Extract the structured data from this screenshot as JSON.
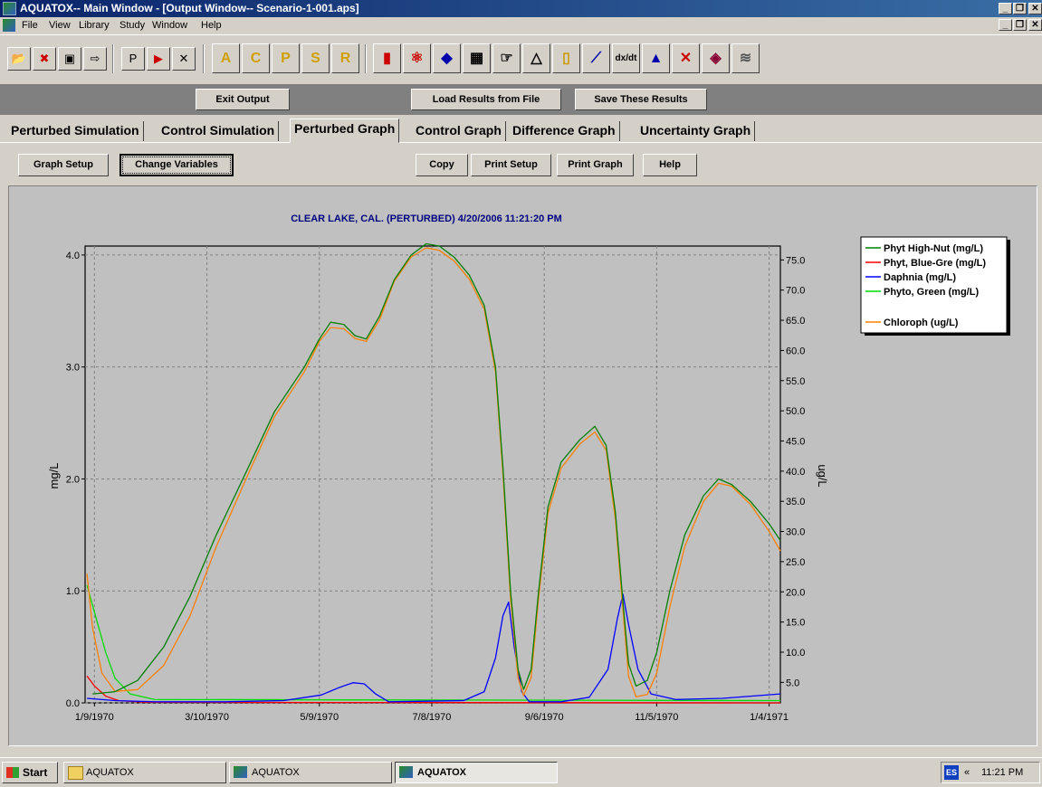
{
  "window": {
    "title": "AQUATOX-- Main Window - [Output Window-- Scenario-1-001.aps]"
  },
  "menu": [
    "File",
    "View",
    "Library",
    "Study",
    "Window",
    "Help"
  ],
  "toolbar": {
    "icons": [
      "open-folder-icon",
      "delete-icon",
      "save-icon",
      "save-as-icon",
      "print-setup-icon",
      "print-icon",
      "close-icon",
      "animal-library-icon",
      "chemical-library-icon",
      "plant-library-icon",
      "site-library-icon",
      "remineralization-library-icon",
      "bar-chart-icon",
      "atom-icon",
      "map-icon",
      "linked-segments-icon",
      "pointer-hand-icon",
      "triangle-icon",
      "ruler-icon",
      "graph-icon",
      "derivative-icon",
      "distribution-icon",
      "graph-x-icon",
      "book-icon",
      "signal-icon"
    ],
    "letters": [
      "A",
      "C",
      "P",
      "S",
      "R"
    ],
    "derivative_label": "dx/dt"
  },
  "output_buttons": {
    "exit": "Exit Output",
    "load": "Load Results from File",
    "save": "Save These Results"
  },
  "tabs": [
    {
      "label": "Perturbed Simulation",
      "active": false
    },
    {
      "label": "Control Simulation",
      "active": false
    },
    {
      "label": "Perturbed Graph",
      "active": true
    },
    {
      "label": "Control Graph",
      "active": false
    },
    {
      "label": "Difference Graph",
      "active": false
    },
    {
      "label": "Uncertainty Graph",
      "active": false
    }
  ],
  "graph_buttons": {
    "setup": "Graph Setup",
    "change": "Change Variables",
    "copy": "Copy",
    "print_setup": "Print Setup",
    "print_graph": "Print Graph",
    "help": "Help"
  },
  "chart_data": {
    "type": "line",
    "title": "CLEAR LAKE, CAL. (PERTURBED)  4/20/2006 11:21:20 PM",
    "ylabel": "mg/L",
    "y2label": "ug/L",
    "ylim": [
      0,
      4.08
    ],
    "y2lim": [
      1.6,
      77.3
    ],
    "xlim": [
      "1/4/1970",
      "1/10/1971"
    ],
    "x_ticks": [
      "1/9/1970",
      "3/10/1970",
      "5/9/1970",
      "7/8/1970",
      "9/6/1970",
      "11/5/1970",
      "1/4/1971"
    ],
    "y_ticks": [
      "0.0",
      "1.0",
      "2.0",
      "3.0",
      "4.0"
    ],
    "y2_ticks": [
      "5.0",
      "10.0",
      "15.0",
      "20.0",
      "25.0",
      "30.0",
      "35.0",
      "40.0",
      "45.0",
      "50.0",
      "55.0",
      "60.0",
      "65.0",
      "70.0",
      "75.0"
    ],
    "grid": true,
    "legend_position": "top-right, outside plot",
    "series": [
      {
        "name": "Phyt High-Nut  (mg/L)",
        "color": "#008000",
        "axis": "left",
        "points": [
          [
            "1/8/1970",
            0.08
          ],
          [
            "1/20/1970",
            0.1
          ],
          [
            "2/1/1970",
            0.2
          ],
          [
            "2/15/1970",
            0.5
          ],
          [
            "3/1/1970",
            0.95
          ],
          [
            "3/15/1970",
            1.5
          ],
          [
            "4/1/1970",
            2.1
          ],
          [
            "4/15/1970",
            2.6
          ],
          [
            "5/1/1970",
            3.0
          ],
          [
            "5/9/1970",
            3.25
          ],
          [
            "5/15/1970",
            3.4
          ],
          [
            "5/22/1970",
            3.38
          ],
          [
            "5/28/1970",
            3.28
          ],
          [
            "6/3/1970",
            3.25
          ],
          [
            "6/10/1970",
            3.45
          ],
          [
            "6/18/1970",
            3.78
          ],
          [
            "6/27/1970",
            4.0
          ],
          [
            "7/5/1970",
            4.1
          ],
          [
            "7/12/1970",
            4.08
          ],
          [
            "7/20/1970",
            3.98
          ],
          [
            "7/28/1970",
            3.82
          ],
          [
            "8/5/1970",
            3.55
          ],
          [
            "8/11/1970",
            3.0
          ],
          [
            "8/15/1970",
            2.1
          ],
          [
            "8/19/1970",
            1.0
          ],
          [
            "8/23/1970",
            0.3
          ],
          [
            "8/26/1970",
            0.12
          ],
          [
            "8/30/1970",
            0.3
          ],
          [
            "9/3/1970",
            1.0
          ],
          [
            "9/8/1970",
            1.75
          ],
          [
            "9/15/1970",
            2.15
          ],
          [
            "9/25/1970",
            2.35
          ],
          [
            "10/3/1970",
            2.47
          ],
          [
            "10/9/1970",
            2.3
          ],
          [
            "10/14/1970",
            1.7
          ],
          [
            "10/18/1970",
            0.9
          ],
          [
            "10/21/1970",
            0.35
          ],
          [
            "10/25/1970",
            0.15
          ],
          [
            "10/31/1970",
            0.2
          ],
          [
            "11/5/1970",
            0.45
          ],
          [
            "11/12/1970",
            1.0
          ],
          [
            "11/20/1970",
            1.5
          ],
          [
            "11/30/1970",
            1.85
          ],
          [
            "12/8/1970",
            2.0
          ],
          [
            "12/15/1970",
            1.95
          ],
          [
            "12/25/1970",
            1.8
          ],
          [
            "1/4/1971",
            1.6
          ],
          [
            "1/10/1971",
            1.45
          ]
        ]
      },
      {
        "name": "Phyt, Blue-Gre (mg/L)",
        "color": "#ff0000",
        "axis": "left",
        "points": [
          [
            "1/5/1970",
            0.24
          ],
          [
            "1/9/1970",
            0.15
          ],
          [
            "1/15/1970",
            0.06
          ],
          [
            "1/22/1970",
            0.02
          ],
          [
            "2/5/1970",
            0.005
          ],
          [
            "1/10/1971",
            0.0
          ]
        ]
      },
      {
        "name": "Daphnia (mg/L)",
        "color": "#0000ff",
        "axis": "left",
        "points": [
          [
            "1/5/1970",
            0.04
          ],
          [
            "1/20/1970",
            0.02
          ],
          [
            "2/10/1970",
            0.01
          ],
          [
            "3/20/1970",
            0.01
          ],
          [
            "4/20/1970",
            0.02
          ],
          [
            "5/10/1970",
            0.07
          ],
          [
            "5/20/1970",
            0.14
          ],
          [
            "5/27/1970",
            0.18
          ],
          [
            "6/2/1970",
            0.17
          ],
          [
            "6/8/1970",
            0.08
          ],
          [
            "6/15/1970",
            0.01
          ],
          [
            "7/25/1970",
            0.02
          ],
          [
            "8/5/1970",
            0.1
          ],
          [
            "8/11/1970",
            0.4
          ],
          [
            "8/15/1970",
            0.78
          ],
          [
            "8/18/1970",
            0.9
          ],
          [
            "8/21/1970",
            0.5
          ],
          [
            "8/25/1970",
            0.1
          ],
          [
            "8/29/1970",
            0.01
          ],
          [
            "9/15/1970",
            0.01
          ],
          [
            "9/30/1970",
            0.05
          ],
          [
            "10/10/1970",
            0.3
          ],
          [
            "10/15/1970",
            0.75
          ],
          [
            "10/18/1970",
            0.97
          ],
          [
            "10/21/1970",
            0.7
          ],
          [
            "10/26/1970",
            0.3
          ],
          [
            "11/2/1970",
            0.08
          ],
          [
            "11/15/1970",
            0.03
          ],
          [
            "12/10/1970",
            0.04
          ],
          [
            "1/10/1971",
            0.08
          ]
        ]
      },
      {
        "name": "Phyto, Green (mg/L)",
        "color": "#00dd00",
        "axis": "left",
        "points": [
          [
            "1/5/1970",
            1.05
          ],
          [
            "1/10/1970",
            0.75
          ],
          [
            "1/15/1970",
            0.45
          ],
          [
            "1/20/1970",
            0.22
          ],
          [
            "1/28/1970",
            0.08
          ],
          [
            "2/10/1970",
            0.03
          ],
          [
            "1/10/1971",
            0.02
          ]
        ]
      },
      {
        "name": "Chloroph (ug/L)",
        "color": "#ff8000",
        "axis": "right",
        "points": [
          [
            "1/5/1970",
            23.0
          ],
          [
            "1/8/1970",
            14.0
          ],
          [
            "1/13/1970",
            6.5
          ],
          [
            "1/20/1970",
            3.5
          ],
          [
            "2/1/1970",
            3.8
          ],
          [
            "2/15/1970",
            7.8
          ],
          [
            "3/1/1970",
            16.0
          ],
          [
            "3/15/1970",
            27.5
          ],
          [
            "4/1/1970",
            39.5
          ],
          [
            "4/15/1970",
            49.0
          ],
          [
            "5/1/1970",
            56.5
          ],
          [
            "5/9/1970",
            61.5
          ],
          [
            "5/15/1970",
            63.8
          ],
          [
            "5/22/1970",
            63.6
          ],
          [
            "5/28/1970",
            62.0
          ],
          [
            "6/3/1970",
            61.5
          ],
          [
            "6/10/1970",
            65.0
          ],
          [
            "6/18/1970",
            71.5
          ],
          [
            "6/27/1970",
            75.5
          ],
          [
            "7/5/1970",
            77.0
          ],
          [
            "7/12/1970",
            76.6
          ],
          [
            "7/20/1970",
            74.8
          ],
          [
            "7/28/1970",
            71.8
          ],
          [
            "8/5/1970",
            66.8
          ],
          [
            "8/11/1970",
            56.5
          ],
          [
            "8/15/1970",
            39.5
          ],
          [
            "8/19/1970",
            19.0
          ],
          [
            "8/23/1970",
            5.8
          ],
          [
            "8/26/1970",
            2.8
          ],
          [
            "8/30/1970",
            5.8
          ],
          [
            "9/3/1970",
            19.0
          ],
          [
            "9/8/1970",
            33.0
          ],
          [
            "9/15/1970",
            40.5
          ],
          [
            "9/25/1970",
            44.5
          ],
          [
            "10/3/1970",
            46.5
          ],
          [
            "10/9/1970",
            43.5
          ],
          [
            "10/14/1970",
            32.0
          ],
          [
            "10/18/1970",
            17.0
          ],
          [
            "10/21/1970",
            6.0
          ],
          [
            "10/25/1970",
            2.6
          ],
          [
            "10/31/1970",
            3.0
          ],
          [
            "11/5/1970",
            6.5
          ],
          [
            "11/12/1970",
            17.5
          ],
          [
            "11/20/1970",
            27.5
          ],
          [
            "11/30/1970",
            35.0
          ],
          [
            "12/8/1970",
            38.0
          ],
          [
            "12/15/1970",
            37.5
          ],
          [
            "12/25/1970",
            34.5
          ],
          [
            "1/4/1971",
            30.0
          ],
          [
            "1/10/1971",
            26.8
          ]
        ]
      }
    ]
  },
  "taskbar": {
    "start": "Start",
    "tasks": [
      {
        "label": "AQUATOX",
        "icon": "folder-icon",
        "active": false
      },
      {
        "label": "AQUATOX",
        "icon": "aquatox-icon",
        "active": false
      },
      {
        "label": "AQUATOX",
        "icon": "aquatox-icon",
        "active": true
      }
    ],
    "lang": "ES",
    "chevron": "«",
    "clock": "11:21 PM"
  }
}
